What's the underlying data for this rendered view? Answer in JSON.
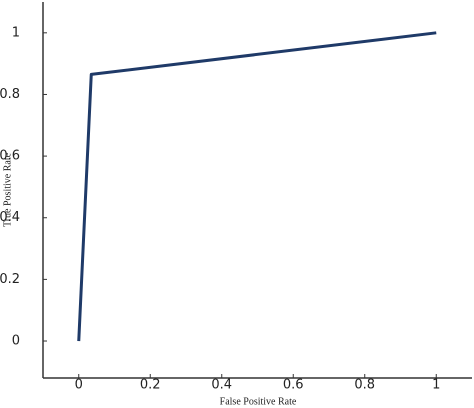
{
  "chart_data": {
    "type": "line",
    "x_label": "False Positive Rate",
    "y_label": "True Positive Rate",
    "x": [
      0,
      0.035,
      1
    ],
    "values": [
      0,
      0.865,
      1
    ],
    "color": "#1f3a68",
    "xlim": [
      -0.1,
      1.1
    ],
    "ylim": [
      -0.12,
      1.1
    ],
    "xticks": [
      0,
      0.2,
      0.4,
      0.6,
      0.8,
      1
    ],
    "yticks": [
      0,
      0.2,
      0.4,
      0.6,
      0.8,
      1
    ]
  }
}
